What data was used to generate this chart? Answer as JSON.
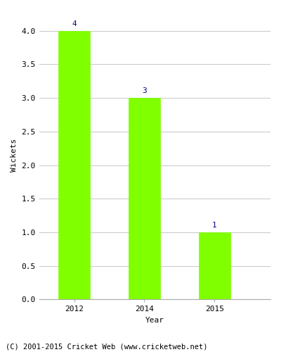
{
  "categories": [
    "2012",
    "2014",
    "2015"
  ],
  "values": [
    4,
    3,
    1
  ],
  "bar_color": "#7fff00",
  "bar_edgecolor": "#7fff00",
  "annotation_color": "#00008b",
  "annotation_fontsize": 8,
  "xlabel": "Year",
  "ylabel": "Wickets",
  "xlabel_fontsize": 8,
  "ylabel_fontsize": 8,
  "tick_fontsize": 8,
  "ylim": [
    0.0,
    4.3
  ],
  "yticks": [
    0.0,
    0.5,
    1.0,
    1.5,
    2.0,
    2.5,
    3.0,
    3.5,
    4.0
  ],
  "ytick_labels": [
    "0.0",
    "0.5",
    "1.0",
    "1.5",
    "2.0",
    "2.5",
    "3.0",
    "3.5",
    "4.0"
  ],
  "grid_color": "#cccccc",
  "background_color": "#ffffff",
  "footer_text": "(C) 2001-2015 Cricket Web (www.cricketweb.net)",
  "footer_fontsize": 7.5,
  "footer_color": "#000000",
  "bar_positions": [
    0,
    1,
    2
  ],
  "bar_width": 0.45,
  "xlim": [
    -0.5,
    2.8
  ]
}
